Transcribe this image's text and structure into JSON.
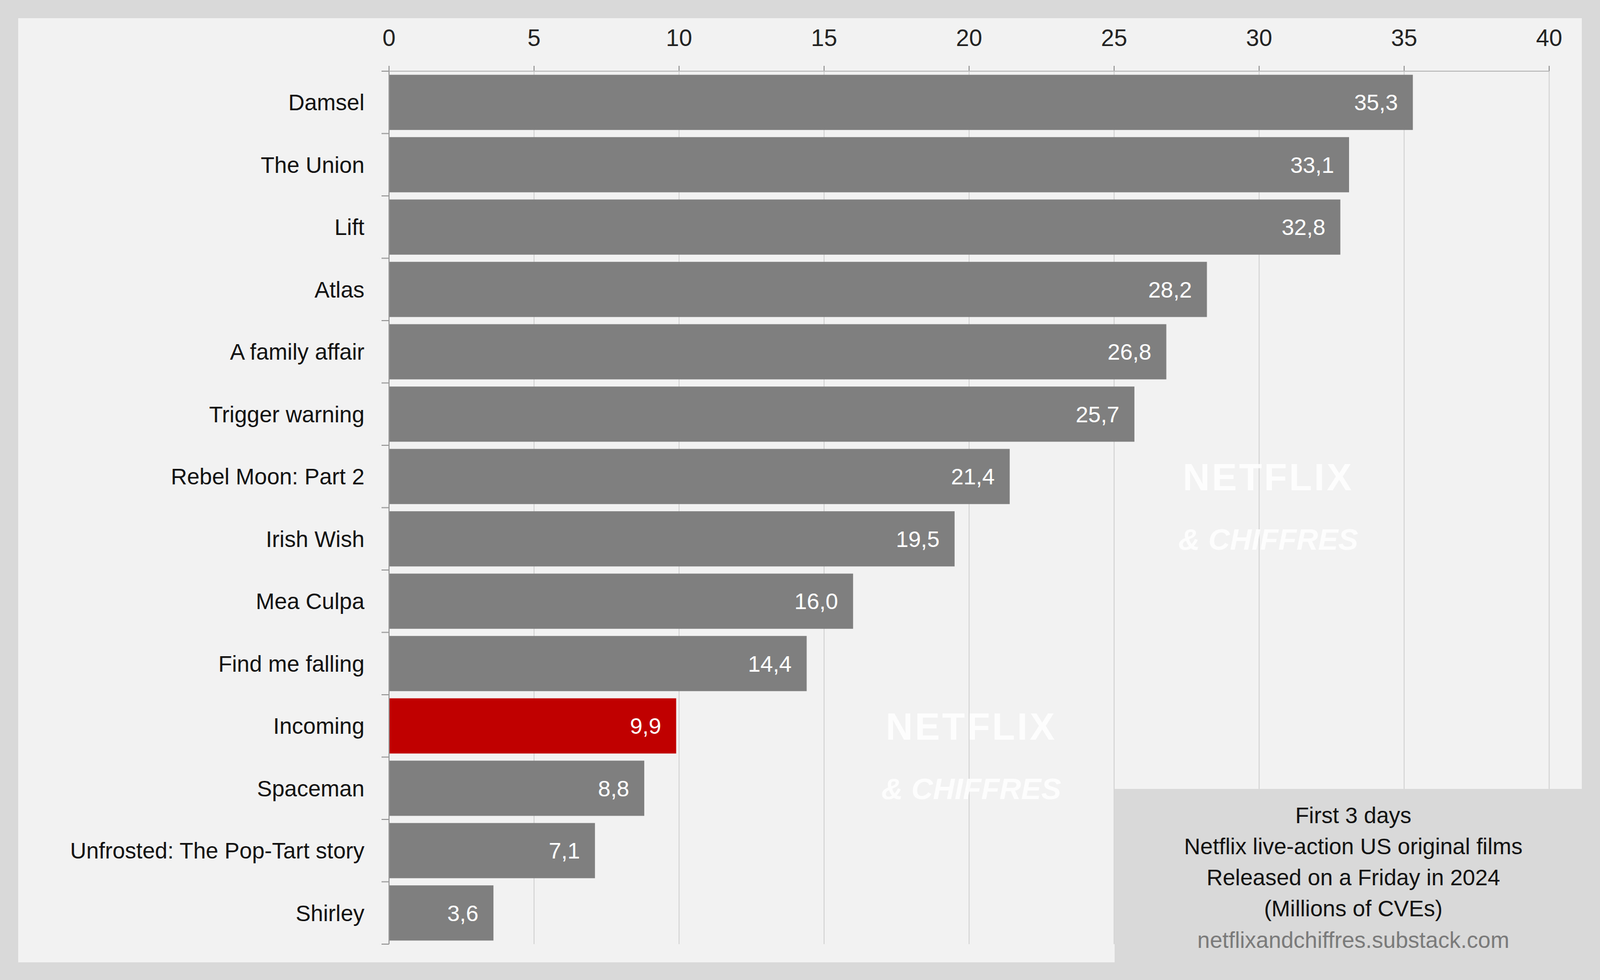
{
  "chart_data": {
    "type": "bar",
    "orientation": "horizontal",
    "title": "First 3 days",
    "subtitle": "Netflix live-action US original films",
    "annotations": [
      "Released on a Friday in 2024",
      "(Millions of CVEs)",
      "netflixandchiffres.substack.com",
      "NETFLIX",
      "& CHIFFRES"
    ],
    "categories": [
      "Damsel",
      "The Union",
      "Lift",
      "Atlas",
      "A family affair",
      "Trigger warning",
      "Rebel Moon: Part 2",
      "Irish Wish",
      "Mea Culpa",
      "Find me falling",
      "Incoming",
      "Spaceman",
      "Unfrosted: The Pop-Tart story",
      "Shirley"
    ],
    "values": [
      35.3,
      33.1,
      32.8,
      28.2,
      26.8,
      25.7,
      21.4,
      19.5,
      16.0,
      14.4,
      9.9,
      8.8,
      7.1,
      3.6
    ],
    "value_labels": [
      "35,3",
      "33,1",
      "32,8",
      "28,2",
      "26,8",
      "25,7",
      "21,4",
      "19,5",
      "16,0",
      "14,4",
      "9,9",
      "8,8",
      "7,1",
      "3,6"
    ],
    "colors": [
      "#7f7f7f",
      "#7f7f7f",
      "#7f7f7f",
      "#7f7f7f",
      "#7f7f7f",
      "#7f7f7f",
      "#7f7f7f",
      "#7f7f7f",
      "#7f7f7f",
      "#7f7f7f",
      "#c00000",
      "#7f7f7f",
      "#7f7f7f",
      "#7f7f7f"
    ],
    "xlim": [
      0,
      40
    ],
    "xticks": [
      0,
      5,
      10,
      15,
      20,
      25,
      30,
      35,
      40
    ],
    "grid": true,
    "data_labels": true
  }
}
